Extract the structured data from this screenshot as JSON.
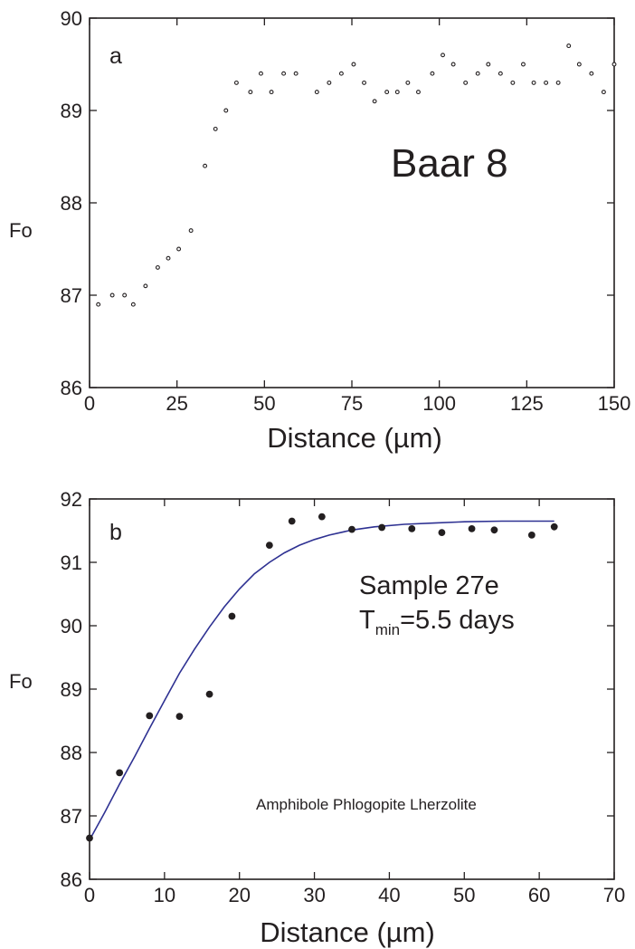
{
  "chart_data": [
    {
      "type": "scatter",
      "panel_label": "a",
      "annotation": "Baar 8",
      "xlabel": "Distance (µm)",
      "ylabel": "Fo",
      "xlim": [
        0,
        150
      ],
      "ylim": [
        86,
        90
      ],
      "xticks": [
        0,
        25,
        50,
        75,
        100,
        125,
        150
      ],
      "yticks": [
        86,
        87,
        88,
        89,
        90
      ],
      "grid": false,
      "point_color": "#231f20",
      "series": [
        {
          "marker": "open-circle",
          "points": [
            [
              2.5,
              86.9
            ],
            [
              6.5,
              87.0
            ],
            [
              10,
              87.0
            ],
            [
              12.5,
              86.9
            ],
            [
              16,
              87.1
            ],
            [
              19.5,
              87.3
            ],
            [
              22.5,
              87.4
            ],
            [
              25.5,
              87.5
            ],
            [
              29,
              87.7
            ],
            [
              33,
              88.4
            ],
            [
              36,
              88.8
            ],
            [
              39,
              89.0
            ],
            [
              42,
              89.3
            ],
            [
              46,
              89.2
            ],
            [
              49,
              89.4
            ],
            [
              52,
              89.2
            ],
            [
              55.5,
              89.4
            ],
            [
              59,
              89.4
            ],
            [
              65,
              89.2
            ],
            [
              68.5,
              89.3
            ],
            [
              72,
              89.4
            ],
            [
              75.5,
              89.5
            ],
            [
              78.5,
              89.3
            ],
            [
              81.5,
              89.1
            ],
            [
              85,
              89.2
            ],
            [
              88,
              89.2
            ],
            [
              91,
              89.3
            ],
            [
              94,
              89.2
            ],
            [
              98,
              89.4
            ],
            [
              101,
              89.6
            ],
            [
              104,
              89.5
            ],
            [
              107.5,
              89.3
            ],
            [
              111,
              89.4
            ],
            [
              114,
              89.5
            ],
            [
              117.5,
              89.4
            ],
            [
              121,
              89.3
            ],
            [
              124,
              89.5
            ],
            [
              127,
              89.3
            ],
            [
              130.5,
              89.3
            ],
            [
              134,
              89.3
            ],
            [
              137,
              89.7
            ],
            [
              140,
              89.5
            ],
            [
              143.5,
              89.4
            ],
            [
              147,
              89.2
            ],
            [
              150,
              89.5
            ]
          ]
        }
      ]
    },
    {
      "type": "scatter",
      "panel_label": "b",
      "annotation_line1": "Sample 27e",
      "annotation_line2_prefix": "T",
      "annotation_line2_sub": "min",
      "annotation_line2_suffix": "=5.5 days",
      "caption": "Amphibole Phlogopite Lherzolite",
      "xlabel": "Distance (µm)",
      "ylabel": "Fo",
      "xlim": [
        0,
        70
      ],
      "ylim": [
        86,
        92
      ],
      "xticks": [
        0,
        10,
        20,
        30,
        40,
        50,
        60,
        70
      ],
      "yticks": [
        86,
        87,
        88,
        89,
        90,
        91,
        92
      ],
      "grid": false,
      "point_color": "#231f20",
      "fit_color": "#2e3192",
      "series": [
        {
          "marker": "filled-circle",
          "points": [
            [
              0,
              86.65
            ],
            [
              4,
              87.68
            ],
            [
              8,
              88.58
            ],
            [
              12,
              88.57
            ],
            [
              16,
              88.92
            ],
            [
              19,
              90.15
            ],
            [
              24,
              91.27
            ],
            [
              27,
              91.65
            ],
            [
              31,
              91.72
            ],
            [
              35,
              91.52
            ],
            [
              39,
              91.55
            ],
            [
              43,
              91.53
            ],
            [
              47,
              91.47
            ],
            [
              51,
              91.53
            ],
            [
              54,
              91.51
            ],
            [
              59,
              91.43
            ],
            [
              62,
              91.56
            ]
          ]
        },
        {
          "marker": "line",
          "points": [
            [
              0,
              86.62
            ],
            [
              2,
              87.05
            ],
            [
              4,
              87.5
            ],
            [
              6,
              87.93
            ],
            [
              8,
              88.38
            ],
            [
              10,
              88.82
            ],
            [
              12,
              89.25
            ],
            [
              14,
              89.63
            ],
            [
              16,
              89.98
            ],
            [
              18,
              90.3
            ],
            [
              20,
              90.58
            ],
            [
              22,
              90.82
            ],
            [
              24,
              91.0
            ],
            [
              26,
              91.15
            ],
            [
              28,
              91.27
            ],
            [
              30,
              91.36
            ],
            [
              32,
              91.43
            ],
            [
              35,
              91.51
            ],
            [
              38,
              91.56
            ],
            [
              42,
              91.6
            ],
            [
              46,
              91.62
            ],
            [
              50,
              91.64
            ],
            [
              55,
              91.65
            ],
            [
              60,
              91.65
            ],
            [
              62,
              91.65
            ]
          ]
        }
      ]
    }
  ]
}
